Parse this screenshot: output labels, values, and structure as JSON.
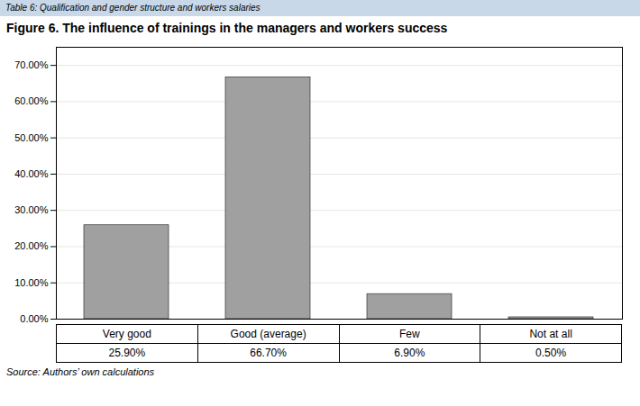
{
  "chart_data": {
    "type": "bar",
    "title": "Figure 6. The influence of trainings in the managers and workers success",
    "annotations": [
      "Table 6: Qualification and gender structure and workers salaries",
      "Source: Authors’ own calculations"
    ],
    "categories": [
      "Very good",
      "Good (average)",
      "Few",
      "Not at all"
    ],
    "values": [
      25.9,
      66.7,
      6.9,
      0.5
    ],
    "value_labels": [
      "25.90%",
      "66.70%",
      "6.90%",
      "0.50%"
    ],
    "color": "#a0a0a0",
    "ylim": [
      0,
      75
    ],
    "yticks": [
      {
        "value": 0,
        "label": "0.00%"
      },
      {
        "value": 10,
        "label": "10.00%"
      },
      {
        "value": 20,
        "label": "20.00%"
      },
      {
        "value": 30,
        "label": "30.00%"
      },
      {
        "value": 40,
        "label": "40.00%"
      },
      {
        "value": 50,
        "label": "50.00%"
      },
      {
        "value": 60,
        "label": "60.00%"
      },
      {
        "value": 70,
        "label": "70.00%"
      }
    ],
    "grid": true
  }
}
